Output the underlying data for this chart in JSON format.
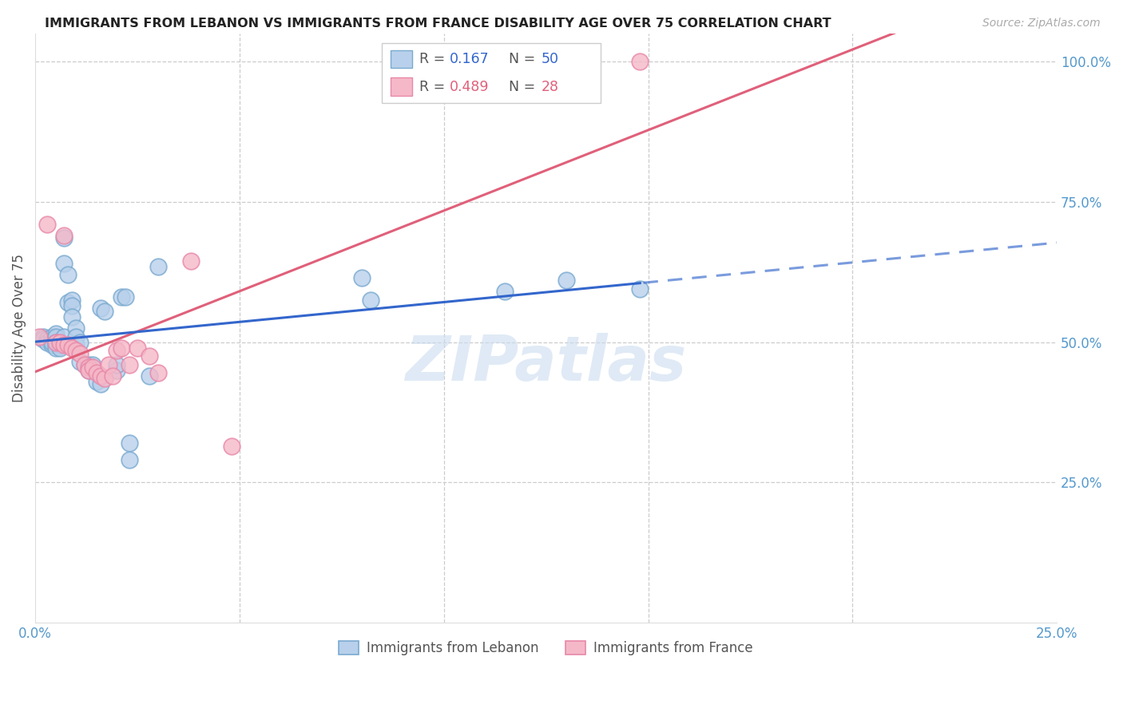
{
  "title": "IMMIGRANTS FROM LEBANON VS IMMIGRANTS FROM FRANCE DISABILITY AGE OVER 75 CORRELATION CHART",
  "source": "Source: ZipAtlas.com",
  "ylabel": "Disability Age Over 75",
  "xmin": 0.0,
  "xmax": 0.25,
  "ymin": 0.0,
  "ymax": 1.05,
  "yticks": [
    0.25,
    0.5,
    0.75,
    1.0
  ],
  "ytick_labels": [
    "25.0%",
    "50.0%",
    "75.0%",
    "100.0%"
  ],
  "xticks": [
    0.0,
    0.05,
    0.1,
    0.15,
    0.2,
    0.25
  ],
  "xtick_labels_show": [
    "0.0%",
    "",
    "",
    "",
    "",
    "25.0%"
  ],
  "legend_blue_r": "0.167",
  "legend_blue_n": "50",
  "legend_pink_r": "0.489",
  "legend_pink_n": "28",
  "blue_fill": "#b8d0eb",
  "pink_fill": "#f5b8c8",
  "blue_edge": "#7aaad0",
  "pink_edge": "#e888a8",
  "blue_line": "#3366cc",
  "pink_line": "#e0607a",
  "axis_label_color": "#5599cc",
  "text_color": "#555555",
  "grid_color": "#cccccc",
  "watermark": "ZIPatlas",
  "watermark_color": "#ccddf0",
  "lebanon_x": [
    0.002,
    0.002,
    0.003,
    0.003,
    0.004,
    0.004,
    0.004,
    0.004,
    0.005,
    0.005,
    0.005,
    0.005,
    0.005,
    0.006,
    0.006,
    0.006,
    0.007,
    0.007,
    0.007,
    0.008,
    0.008,
    0.009,
    0.009,
    0.009,
    0.01,
    0.01,
    0.01,
    0.011,
    0.011,
    0.012,
    0.013,
    0.013,
    0.014,
    0.015,
    0.016,
    0.016,
    0.017,
    0.02,
    0.02,
    0.021,
    0.022,
    0.023,
    0.023,
    0.028,
    0.03,
    0.08,
    0.082,
    0.115,
    0.13,
    0.148
  ],
  "lebanon_y": [
    0.51,
    0.505,
    0.505,
    0.5,
    0.495,
    0.505,
    0.51,
    0.5,
    0.515,
    0.51,
    0.495,
    0.5,
    0.49,
    0.495,
    0.5,
    0.49,
    0.685,
    0.64,
    0.51,
    0.62,
    0.57,
    0.575,
    0.565,
    0.545,
    0.525,
    0.51,
    0.495,
    0.5,
    0.465,
    0.46,
    0.46,
    0.45,
    0.46,
    0.43,
    0.425,
    0.56,
    0.555,
    0.45,
    0.46,
    0.58,
    0.58,
    0.32,
    0.29,
    0.44,
    0.635,
    0.615,
    0.575,
    0.59,
    0.61,
    0.595
  ],
  "france_x": [
    0.001,
    0.003,
    0.005,
    0.006,
    0.007,
    0.007,
    0.008,
    0.009,
    0.01,
    0.011,
    0.012,
    0.013,
    0.013,
    0.014,
    0.015,
    0.016,
    0.017,
    0.018,
    0.019,
    0.02,
    0.021,
    0.023,
    0.025,
    0.028,
    0.03,
    0.038,
    0.048,
    0.148
  ],
  "france_y": [
    0.51,
    0.71,
    0.5,
    0.5,
    0.495,
    0.69,
    0.495,
    0.49,
    0.485,
    0.48,
    0.46,
    0.455,
    0.45,
    0.455,
    0.445,
    0.44,
    0.435,
    0.46,
    0.44,
    0.485,
    0.49,
    0.46,
    0.49,
    0.475,
    0.445,
    0.645,
    0.315,
    1.0
  ]
}
